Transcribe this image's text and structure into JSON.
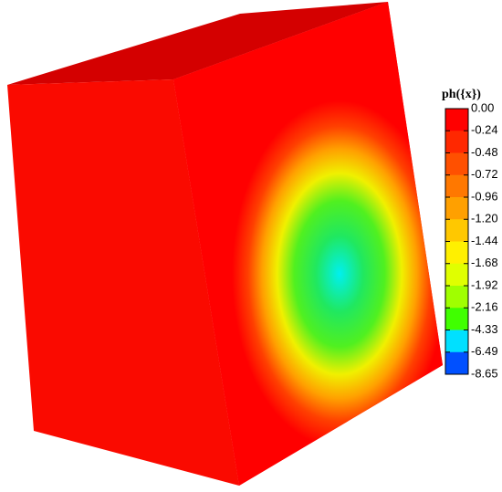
{
  "chart_data": {
    "type": "contour",
    "title": "ph({x})",
    "levels": [
      {
        "value": 0,
        "label": "0.00"
      },
      -0.24,
      -0.48,
      -0.72,
      -0.96,
      {
        "value": -1.2,
        "label": "-1.20"
      },
      -1.44,
      -1.68,
      -1.92,
      -2.16,
      -4.33,
      -6.49,
      -8.65
    ],
    "colors": [
      "#ff0000",
      "#ff2800",
      "#ff5000",
      "#ff7800",
      "#ffa000",
      "#ffc800",
      "#fff000",
      "#e0ff00",
      "#a0ff00",
      "#40ff00",
      "#00ff80",
      "#00e0ff",
      "#0050ff"
    ]
  }
}
